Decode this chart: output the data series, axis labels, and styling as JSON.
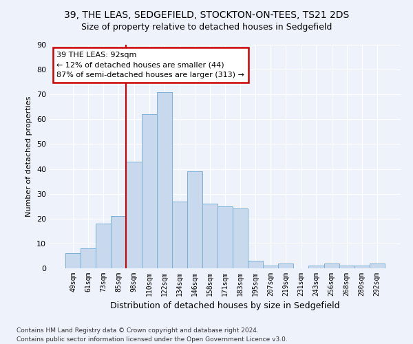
{
  "title1": "39, THE LEAS, SEDGEFIELD, STOCKTON-ON-TEES, TS21 2DS",
  "title2": "Size of property relative to detached houses in Sedgefield",
  "xlabel": "Distribution of detached houses by size in Sedgefield",
  "ylabel": "Number of detached properties",
  "bar_values": [
    6,
    8,
    18,
    21,
    43,
    62,
    71,
    27,
    39,
    26,
    25,
    24,
    3,
    1,
    2,
    0,
    1,
    2,
    1,
    1,
    2
  ],
  "bar_labels": [
    "49sqm",
    "61sqm",
    "73sqm",
    "85sqm",
    "98sqm",
    "110sqm",
    "122sqm",
    "134sqm",
    "146sqm",
    "158sqm",
    "171sqm",
    "183sqm",
    "195sqm",
    "207sqm",
    "219sqm",
    "231sqm",
    "243sqm",
    "256sqm",
    "268sqm",
    "280sqm",
    "292sqm"
  ],
  "bar_color": "#c8d9ee",
  "bar_edge_color": "#7bafd4",
  "annotation_title": "39 THE LEAS: 92sqm",
  "annotation_line1": "← 12% of detached houses are smaller (44)",
  "annotation_line2": "87% of semi-detached houses are larger (313) →",
  "annotation_box_color": "#ffffff",
  "annotation_box_edge": "#cc0000",
  "vline_color": "#cc0000",
  "vline_x_index": 3.5,
  "ylim": [
    0,
    90
  ],
  "yticks": [
    0,
    10,
    20,
    30,
    40,
    50,
    60,
    70,
    80,
    90
  ],
  "footer1": "Contains HM Land Registry data © Crown copyright and database right 2024.",
  "footer2": "Contains public sector information licensed under the Open Government Licence v3.0.",
  "background_color": "#edf2fb",
  "plot_bg_color": "#edf2fb",
  "title1_fontsize": 10,
  "title2_fontsize": 9,
  "ylabel_fontsize": 8,
  "xlabel_fontsize": 9,
  "xtick_fontsize": 7,
  "ytick_fontsize": 8,
  "footer_fontsize": 6.5
}
